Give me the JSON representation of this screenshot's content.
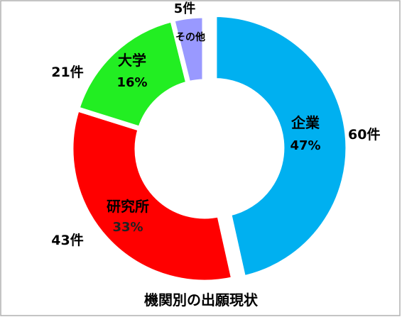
{
  "chart_data": {
    "type": "pie",
    "title": "機関別の出願現状",
    "slices": [
      {
        "name": "企業",
        "count_label": "60件",
        "percent_label": "47%",
        "value": 60,
        "color": "#00B0F0"
      },
      {
        "name": "研究所",
        "count_label": "43件",
        "percent_label": "33%",
        "value": 43,
        "color": "#FF0000"
      },
      {
        "name": "大学",
        "count_label": "21件",
        "percent_label": "16%",
        "value": 21,
        "color": "#22EE22"
      },
      {
        "name": "その他",
        "count_label": "5件",
        "percent_label": "",
        "value": 5,
        "color": "#9999FF"
      }
    ],
    "donut": true,
    "legend": "none"
  }
}
